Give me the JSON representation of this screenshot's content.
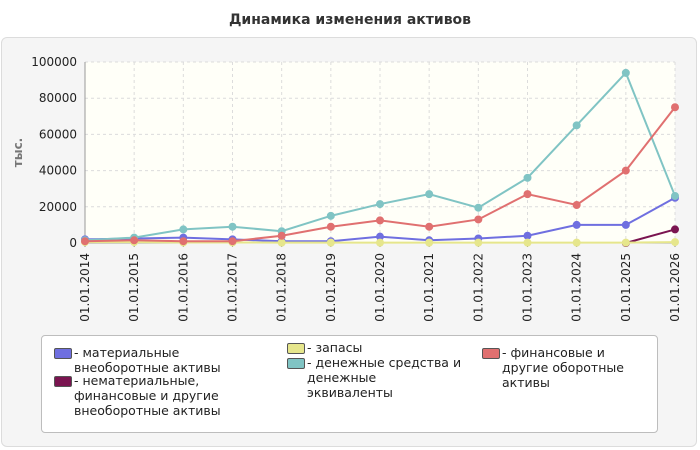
{
  "chart_data": {
    "type": "line",
    "title": "Динамика изменения активов",
    "ylabel": "тыс.",
    "xlabel": "",
    "ylim": [
      0,
      100000
    ],
    "yticks": [
      "0",
      "20000",
      "40000",
      "60000",
      "80000",
      "100000"
    ],
    "ytick_values": [
      0,
      20000,
      40000,
      60000,
      80000,
      100000
    ],
    "categories": [
      "01.01.2014",
      "01.01.2015",
      "01.01.2016",
      "01.01.2017",
      "01.01.2018",
      "01.01.2019",
      "01.01.2020",
      "01.01.2021",
      "01.01.2022",
      "01.01.2023",
      "01.01.2024",
      "01.01.2025",
      "01.01.2026"
    ],
    "legend_position": "bottom",
    "grid": true,
    "series": [
      {
        "name": "материальные внеоборотные активы",
        "color": "#6f6fe0",
        "values": [
          2000,
          2500,
          3000,
          2000,
          1000,
          1000,
          3500,
          1500,
          2500,
          4000,
          10000,
          10000,
          25000
        ]
      },
      {
        "name": "нематериальные, финансовые и другие внеоборотные активы",
        "color": "#7a1450",
        "values": [
          null,
          null,
          null,
          null,
          null,
          null,
          null,
          null,
          null,
          null,
          null,
          0,
          7500
        ]
      },
      {
        "name": "запасы",
        "color": "#e6e68c",
        "values": [
          500,
          500,
          300,
          300,
          200,
          200,
          200,
          200,
          200,
          200,
          200,
          200,
          500
        ]
      },
      {
        "name": "денежные средства и денежные эквиваленты",
        "color": "#80c4c4",
        "values": [
          1500,
          3000,
          7500,
          9000,
          6500,
          15000,
          21500,
          27000,
          19500,
          36000,
          65000,
          94000,
          26000
        ]
      },
      {
        "name": "финансовые и другие оборотные активы",
        "color": "#e07070",
        "values": [
          1000,
          1500,
          1000,
          1000,
          4000,
          9000,
          12500,
          9000,
          13000,
          27000,
          21000,
          40000,
          75000
        ]
      }
    ]
  },
  "legend": {
    "items": [
      {
        "label": "- материальные внеоборотные активы",
        "color": "#6f6fe0"
      },
      {
        "label": "- запасы",
        "color": "#e6e68c"
      },
      {
        "label": "- финансовые и другие оборотные активы",
        "color": "#e07070"
      },
      {
        "label": "- нематериальные, финансовые и другие внеоборотные активы",
        "color": "#7a1450"
      },
      {
        "label": "- денежные средства и денежные эквиваленты",
        "color": "#80c4c4"
      }
    ]
  }
}
